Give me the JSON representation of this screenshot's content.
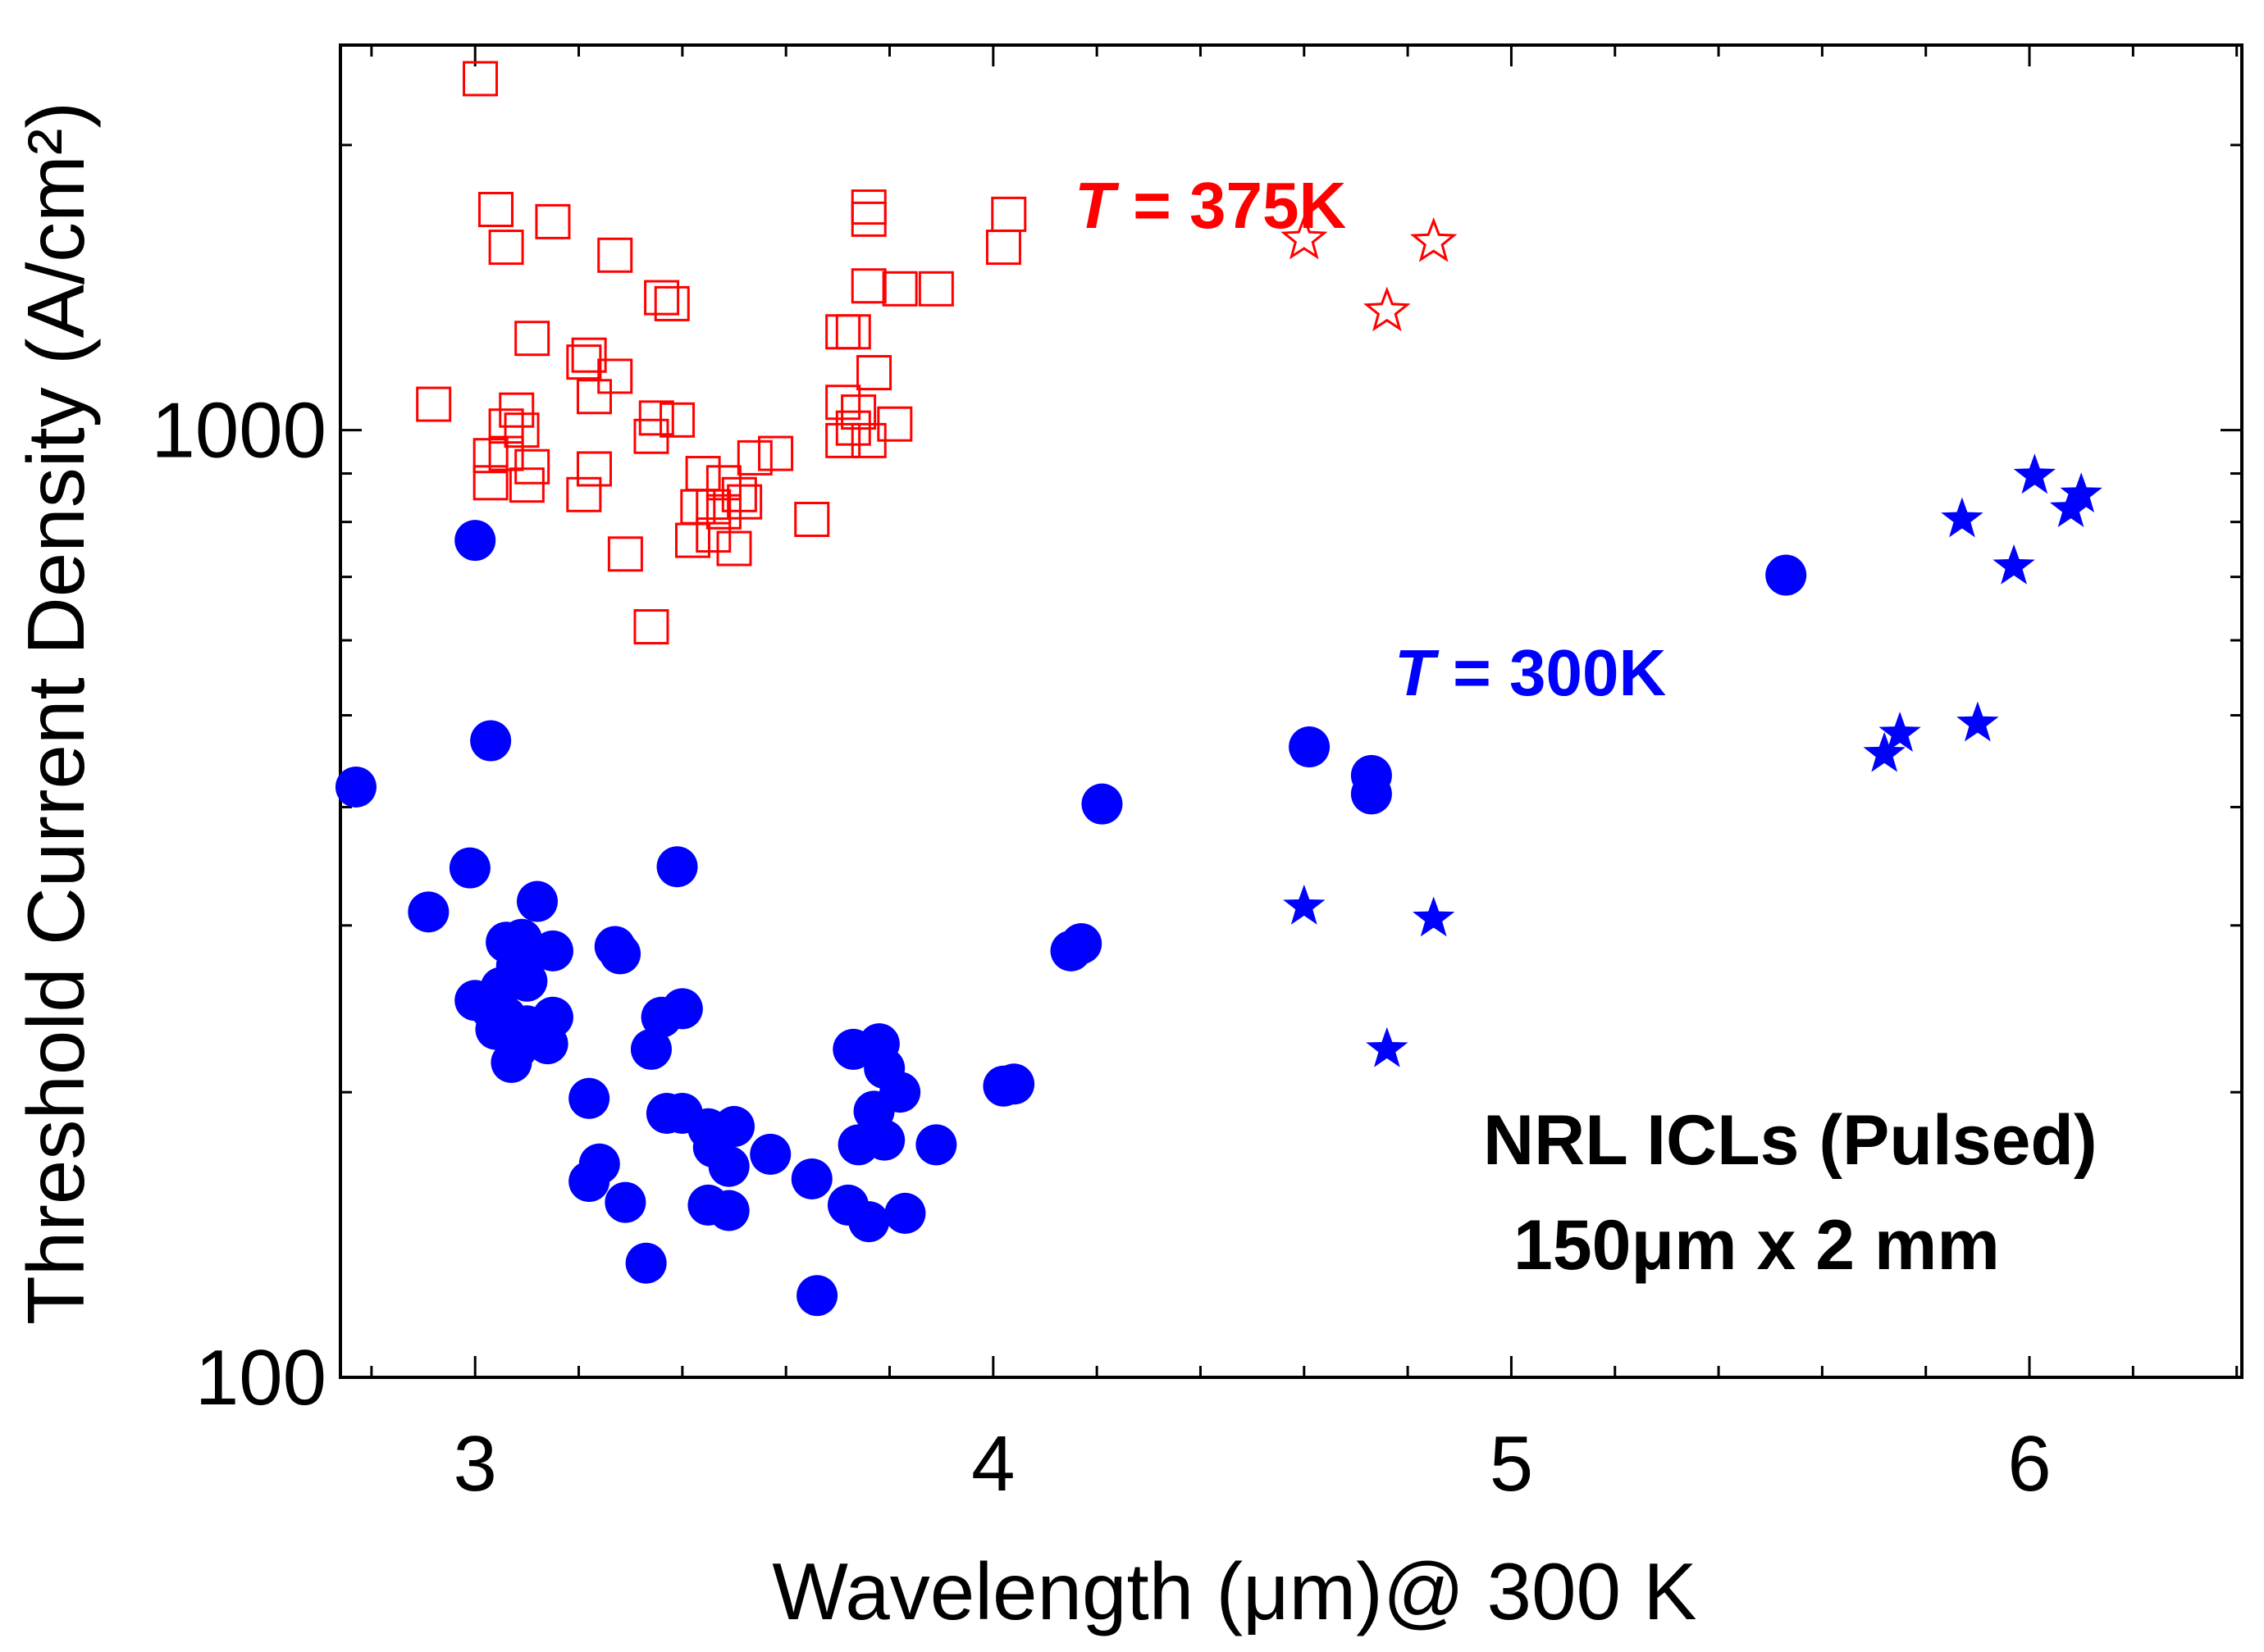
{
  "chart_data": {
    "type": "scatter",
    "xlabel": "Wavelength (μm)@ 300 K",
    "ylabel": "Threshold Current Density (A/cm²)",
    "y_scale": "log",
    "xlim": [
      2.74,
      6.41
    ],
    "ylim": [
      100,
      2550
    ],
    "x_ticks": [
      {
        "value": 3,
        "label": "3"
      },
      {
        "value": 4,
        "label": "4"
      },
      {
        "value": 5,
        "label": "5"
      },
      {
        "value": 6,
        "label": "6"
      }
    ],
    "y_ticks": [
      {
        "value": 100,
        "label": "100"
      },
      {
        "value": 1000,
        "label": "1000"
      }
    ],
    "annotations": {
      "t375": {
        "italic": "T",
        "text": " = 375K",
        "color": "#ff0000"
      },
      "t300": {
        "italic": "T",
        "text": " = 300K",
        "color": "#0000ff"
      },
      "device": "NRL ICLs (Pulsed)",
      "size": "150μm x 2 mm"
    },
    "series": [
      {
        "name": "T = 375K (open squares)",
        "marker": "open-square",
        "color": "#ff0000",
        "points": [
          [
            3.01,
            2350
          ],
          [
            3.04,
            1710
          ],
          [
            3.06,
            1560
          ],
          [
            3.15,
            1660
          ],
          [
            2.92,
            1065
          ],
          [
            3.11,
            1250
          ],
          [
            3.08,
            1050
          ],
          [
            3.06,
            1010
          ],
          [
            3.09,
            1000
          ],
          [
            3.06,
            945
          ],
          [
            3.11,
            915
          ],
          [
            3.03,
            940
          ],
          [
            3.03,
            880
          ],
          [
            3.1,
            875
          ],
          [
            3.27,
            1530
          ],
          [
            3.22,
            1200
          ],
          [
            3.27,
            1140
          ],
          [
            3.21,
            1180
          ],
          [
            3.23,
            1085
          ],
          [
            3.36,
            1380
          ],
          [
            3.38,
            1360
          ],
          [
            3.35,
            1030
          ],
          [
            3.39,
            1025
          ],
          [
            3.34,
            985
          ],
          [
            3.23,
            910
          ],
          [
            3.21,
            855
          ],
          [
            3.29,
            740
          ],
          [
            3.34,
            620
          ],
          [
            3.44,
            900
          ],
          [
            3.48,
            880
          ],
          [
            3.43,
            830
          ],
          [
            3.46,
            830
          ],
          [
            3.51,
            855
          ],
          [
            3.52,
            840
          ],
          [
            3.54,
            935
          ],
          [
            3.58,
            945
          ],
          [
            3.48,
            820
          ],
          [
            3.42,
            765
          ],
          [
            3.46,
            775
          ],
          [
            3.5,
            750
          ],
          [
            3.65,
            805
          ],
          [
            3.76,
            1720
          ],
          [
            3.76,
            1670
          ],
          [
            3.76,
            1420
          ],
          [
            3.71,
            1270
          ],
          [
            3.73,
            1270
          ],
          [
            3.77,
            1150
          ],
          [
            3.71,
            1070
          ],
          [
            3.74,
            1045
          ],
          [
            3.73,
            1005
          ],
          [
            3.76,
            975
          ],
          [
            3.71,
            975
          ],
          [
            3.81,
            1015
          ],
          [
            3.82,
            1410
          ],
          [
            3.89,
            1410
          ],
          [
            4.03,
            1690
          ],
          [
            4.02,
            1560
          ]
        ]
      },
      {
        "name": "T = 375K (open stars)",
        "marker": "open-star",
        "color": "#ff0000",
        "points": [
          [
            4.6,
            1590
          ],
          [
            4.85,
            1580
          ],
          [
            4.76,
            1335
          ]
        ]
      },
      {
        "name": "T = 300K (filled circles)",
        "marker": "filled-circle",
        "color": "#0000ff",
        "points": [
          [
            3.0,
            765
          ],
          [
            3.03,
            470
          ],
          [
            2.77,
            420
          ],
          [
            2.99,
            345
          ],
          [
            2.91,
            310
          ],
          [
            3.12,
            318
          ],
          [
            3.06,
            288
          ],
          [
            3.09,
            290
          ],
          [
            3.15,
            282
          ],
          [
            3.08,
            272
          ],
          [
            3.05,
            258
          ],
          [
            3.1,
            262
          ],
          [
            3.0,
            250
          ],
          [
            3.03,
            245
          ],
          [
            3.06,
            240
          ],
          [
            3.04,
            233
          ],
          [
            3.1,
            235
          ],
          [
            3.15,
            240
          ],
          [
            3.08,
            222
          ],
          [
            3.14,
            225
          ],
          [
            3.07,
            215
          ],
          [
            3.22,
            197
          ],
          [
            3.27,
            285
          ],
          [
            3.28,
            280
          ],
          [
            3.39,
            346
          ],
          [
            3.36,
            240
          ],
          [
            3.4,
            245
          ],
          [
            3.34,
            222
          ],
          [
            3.37,
            190
          ],
          [
            3.4,
            190
          ],
          [
            3.45,
            183
          ],
          [
            3.5,
            184
          ],
          [
            3.46,
            175
          ],
          [
            3.49,
            167
          ],
          [
            3.57,
            172
          ],
          [
            3.24,
            168
          ],
          [
            3.22,
            161
          ],
          [
            3.29,
            153
          ],
          [
            3.45,
            152
          ],
          [
            3.49,
            150
          ],
          [
            3.33,
            132
          ],
          [
            3.65,
            162
          ],
          [
            3.72,
            152
          ],
          [
            3.66,
            122
          ],
          [
            3.76,
            146
          ],
          [
            3.83,
            149
          ],
          [
            3.74,
            176
          ],
          [
            3.79,
            178
          ],
          [
            3.77,
            191
          ],
          [
            3.82,
            200
          ],
          [
            3.73,
            222
          ],
          [
            3.78,
            225
          ],
          [
            3.79,
            212
          ],
          [
            3.89,
            176
          ],
          [
            4.02,
            203
          ],
          [
            4.04,
            204
          ],
          [
            4.15,
            282
          ],
          [
            4.17,
            287
          ],
          [
            4.21,
            403
          ],
          [
            4.61,
            463
          ],
          [
            4.73,
            432
          ],
          [
            4.73,
            413
          ],
          [
            5.53,
            703
          ]
        ]
      },
      {
        "name": "T = 300K (filled stars)",
        "marker": "filled-star",
        "color": "#0000ff",
        "points": [
          [
            4.6,
            314
          ],
          [
            4.85,
            305
          ],
          [
            4.76,
            222
          ],
          [
            6.01,
            895
          ],
          [
            6.1,
            855
          ],
          [
            6.08,
            825
          ],
          [
            5.87,
            805
          ],
          [
            5.97,
            718
          ],
          [
            5.75,
            478
          ],
          [
            5.72,
            455
          ],
          [
            5.9,
            490
          ]
        ]
      }
    ]
  }
}
